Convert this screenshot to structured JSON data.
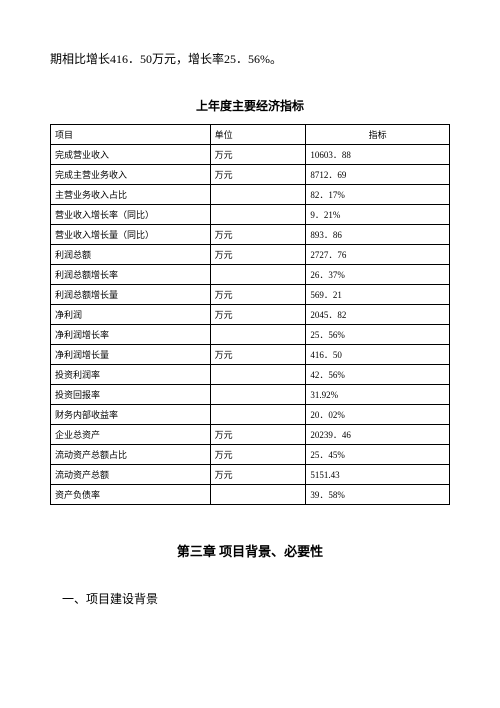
{
  "intro_text": "期相比增长416．50万元，增长率25．56%。",
  "table_title": "上年度主要经济指标",
  "table": {
    "headers": {
      "item": "项目",
      "unit": "单位",
      "value": "指标"
    },
    "rows": [
      {
        "item": "完成营业收入",
        "unit": "万元",
        "value": "10603．88"
      },
      {
        "item": "完成主营业务收入",
        "unit": "万元",
        "value": "8712．69"
      },
      {
        "item": "主营业务收入占比",
        "unit": "",
        "value": "82．17%"
      },
      {
        "item": "营业收入增长率（同比）",
        "unit": "",
        "value": "9．21%"
      },
      {
        "item": "营业收入增长量（同比）",
        "unit": "万元",
        "value": "893．86"
      },
      {
        "item": "利润总额",
        "unit": "万元",
        "value": "2727．76"
      },
      {
        "item": "利润总额增长率",
        "unit": "",
        "value": "26．37%"
      },
      {
        "item": "利润总额增长量",
        "unit": "万元",
        "value": "569．21"
      },
      {
        "item": "净利润",
        "unit": "万元",
        "value": "2045．82"
      },
      {
        "item": "净利润增长率",
        "unit": "",
        "value": "25．56%"
      },
      {
        "item": "净利润增长量",
        "unit": "万元",
        "value": "416．50"
      },
      {
        "item": "投资利润率",
        "unit": "",
        "value": "42．56%"
      },
      {
        "item": "投资回报率",
        "unit": "",
        "value": "31.92%"
      },
      {
        "item": "财务内部收益率",
        "unit": "",
        "value": "20．02%"
      },
      {
        "item": "企业总资产",
        "unit": "万元",
        "value": "20239．46"
      },
      {
        "item": "流动资产总额占比",
        "unit": "万元",
        "value": "25．45%"
      },
      {
        "item": "流动资产总额",
        "unit": "万元",
        "value": "5151.43"
      },
      {
        "item": "资产负债率",
        "unit": "",
        "value": "39．58%"
      }
    ]
  },
  "chapter_title": "第三章 项目背景、必要性",
  "section_heading": "一、项目建设背景"
}
